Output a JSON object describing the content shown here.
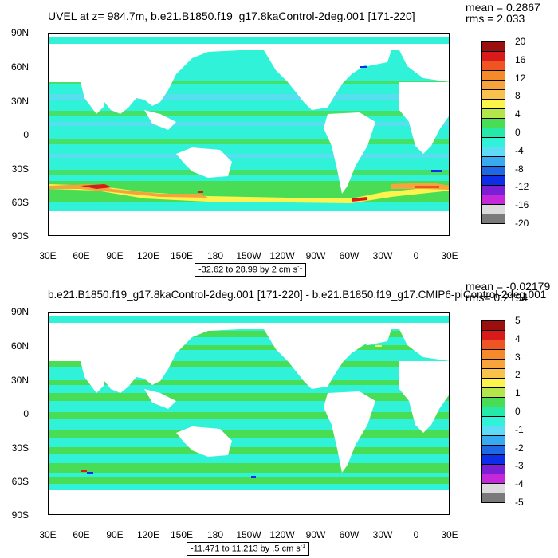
{
  "top": {
    "title": "UVEL at z= 984.7m, b.e21.B1850.f19_g17.8kaControl-2deg.001 [171-220]",
    "mean_label": "mean = 0.2867",
    "rms_label": "rms = 2.033",
    "info_prefix": "-32.62 to 28.99 by 2 cm s",
    "info_exp": "-1",
    "colorbar": {
      "labels": [
        "20",
        "16",
        "12",
        "8",
        "4",
        "0",
        "-4",
        "-8",
        "-12",
        "-16",
        "-20"
      ],
      "colors": [
        "#9b0f0f",
        "#d81a1a",
        "#ee5522",
        "#f48a2a",
        "#f7a43d",
        "#f9c24d",
        "#fcf44c",
        "#b4e54a",
        "#48dd55",
        "#25e9a8",
        "#2ff2d9",
        "#5fdcf5",
        "#37aaf0",
        "#1e68e6",
        "#0d2ee8",
        "#7a1fd6",
        "#c428d8",
        "#dbdbdb",
        "#7a7a7a"
      ]
    }
  },
  "bottom": {
    "title": "b.e21.B1850.f19_g17.8kaControl-2deg.001 [171-220] - b.e21.B1850.f19_g17.CMIP6-piControl-2deg.001",
    "mean_label": "mean = -0.02179",
    "rms_label": "rms= 0.2194",
    "info_prefix": "-11.471 to 11.213 by .5 cm s",
    "info_exp": "-1",
    "colorbar": {
      "labels": [
        "5",
        "4",
        "3",
        "2",
        "1",
        "0",
        "-1",
        "-2",
        "-3",
        "-4",
        "-5"
      ],
      "colors": [
        "#9b0f0f",
        "#d81a1a",
        "#ee5522",
        "#f48a2a",
        "#f7a43d",
        "#f9c24d",
        "#fcf44c",
        "#b4e54a",
        "#48dd55",
        "#25e9a8",
        "#2ff2d9",
        "#5fdcf5",
        "#37aaf0",
        "#1e68e6",
        "#0d2ee8",
        "#7a1fd6",
        "#c428d8",
        "#dbdbdb",
        "#7a7a7a"
      ]
    }
  },
  "axes": {
    "lat_labels": [
      "90N",
      "60N",
      "30N",
      "0",
      "30S",
      "60S",
      "90S"
    ],
    "lon_labels": [
      "30E",
      "60E",
      "90E",
      "120E",
      "150E",
      "180",
      "150W",
      "120W",
      "90W",
      "60W",
      "30W",
      "0",
      "30E"
    ]
  },
  "colors": {
    "ocean_background": "#2ff2d9",
    "ocean_band_light": "#5fdcf5",
    "ocean_band_green": "#48dd55",
    "land": "#ffffff"
  }
}
